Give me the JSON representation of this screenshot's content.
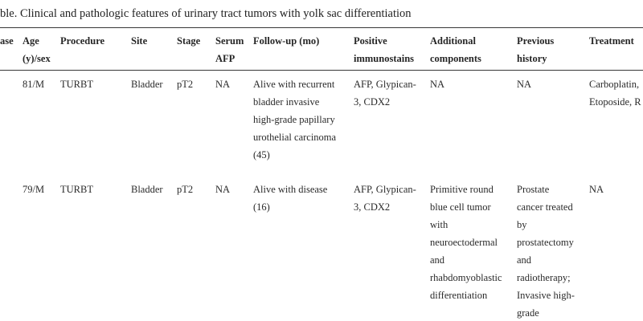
{
  "caption": "ble. Clinical and pathologic features of urinary tract tumors with yolk sac differentiation",
  "colors": {
    "background": "#ffffff",
    "text": "#2a2a2a",
    "rule": "#383838"
  },
  "table": {
    "columns": [
      {
        "key": "case",
        "label": "ase"
      },
      {
        "key": "age_sex",
        "label": "Age\n(y)/sex"
      },
      {
        "key": "procedure",
        "label": "Procedure"
      },
      {
        "key": "site",
        "label": "Site"
      },
      {
        "key": "stage",
        "label": "Stage"
      },
      {
        "key": "serum_afp",
        "label": "Serum\nAFP"
      },
      {
        "key": "follow_up",
        "label": "Follow-up (mo)"
      },
      {
        "key": "immunostains",
        "label": "Positive\nimmunostains"
      },
      {
        "key": "additional",
        "label": "Additional\ncomponents"
      },
      {
        "key": "history",
        "label": "Previous\nhistory"
      },
      {
        "key": "treatment",
        "label": "Treatment"
      }
    ],
    "rows": [
      {
        "case": "",
        "age_sex": "81/M",
        "procedure": "TURBT",
        "site": "Bladder",
        "stage": "pT2",
        "serum_afp": "NA",
        "follow_up": "Alive with recurrent\nbladder invasive\nhigh-grade papillary\nurothelial carcinoma\n(45)",
        "immunostains": "AFP, Glypican-\n3, CDX2",
        "additional": "NA",
        "history": "NA",
        "treatment": "Carboplatin,\nEtoposide, R"
      },
      {
        "case": "",
        "age_sex": "79/M",
        "procedure": "TURBT",
        "site": "Bladder",
        "stage": "pT2",
        "serum_afp": "NA",
        "follow_up": "Alive with disease\n(16)",
        "immunostains": "AFP, Glypican-\n3, CDX2",
        "additional": "Primitive round\nblue cell tumor\nwith\nneuroectodermal\nand\nrhabdomyoblastic\ndifferentiation",
        "history": "Prostate\ncancer treated\nby\nprostatectomy\nand\nradiotherapy;\nInvasive high-\ngrade",
        "treatment": "NA"
      }
    ]
  }
}
